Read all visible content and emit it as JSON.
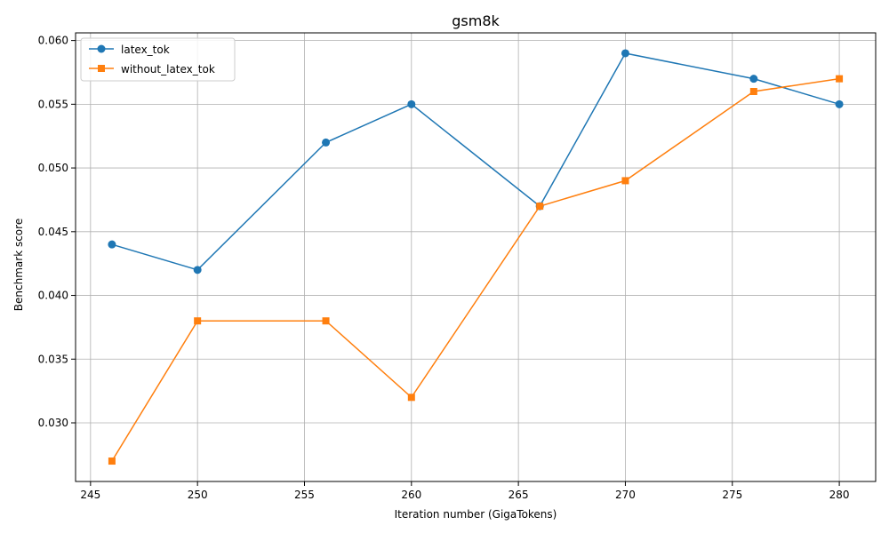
{
  "chart_data": {
    "type": "line",
    "title": "gsm8k",
    "xlabel": "Iteration number (GigaTokens)",
    "ylabel": "Benchmark score",
    "xlim": [
      244.3,
      281.7
    ],
    "ylim": [
      0.0254,
      0.0606
    ],
    "x_ticks": [
      245,
      250,
      255,
      260,
      265,
      270,
      275,
      280
    ],
    "y_ticks": [
      0.03,
      0.035,
      0.04,
      0.045,
      0.05,
      0.055,
      0.06
    ],
    "grid": true,
    "legend_position": "top-left",
    "series": [
      {
        "name": "latex_tok",
        "color": "#1f77b4",
        "marker": "circle",
        "x": [
          246,
          250,
          256,
          260,
          266,
          270,
          276,
          280
        ],
        "y": [
          0.044,
          0.042,
          0.052,
          0.055,
          0.047,
          0.059,
          0.057,
          0.055
        ]
      },
      {
        "name": "without_latex_tok",
        "color": "#ff7f0e",
        "marker": "square",
        "x": [
          246,
          250,
          256,
          260,
          266,
          270,
          276,
          280
        ],
        "y": [
          0.027,
          0.038,
          0.038,
          0.032,
          0.047,
          0.049,
          0.056,
          0.057
        ]
      }
    ]
  }
}
